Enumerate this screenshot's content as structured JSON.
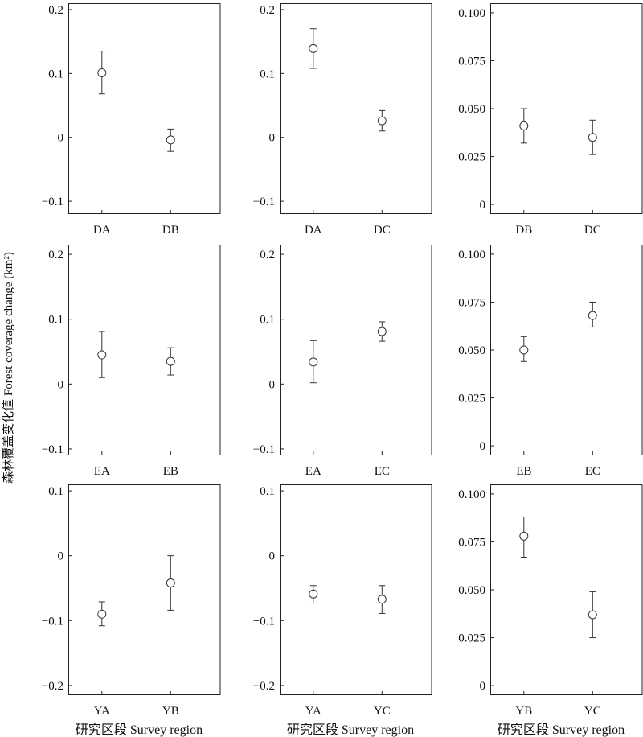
{
  "ylabel": "森林覆盖变化值 Forest coverage change (km²)",
  "xlabel": "研究区段 Survey region",
  "chart_data": [
    {
      "type": "scatter",
      "categories": [
        "DA",
        "DB"
      ],
      "series": [
        {
          "values": [
            0.101,
            -0.004
          ],
          "lower": [
            0.068,
            -0.022
          ],
          "upper": [
            0.135,
            0.013
          ]
        }
      ],
      "ylim": [
        -0.12,
        0.21
      ],
      "yticks": [
        -0.1,
        0,
        0.1,
        0.2
      ],
      "ytick_labels": [
        "−0.1",
        "0",
        "0.1",
        "0.2"
      ],
      "xlabel": "",
      "ylabel": "Forest coverage change (km²)",
      "grid": false
    },
    {
      "type": "scatter",
      "categories": [
        "DA",
        "DC"
      ],
      "series": [
        {
          "values": [
            0.139,
            0.026
          ],
          "lower": [
            0.108,
            0.01
          ],
          "upper": [
            0.17,
            0.042
          ]
        }
      ],
      "ylim": [
        -0.12,
        0.21
      ],
      "yticks": [
        -0.1,
        0,
        0.1,
        0.2
      ],
      "ytick_labels": [
        "−0.1",
        "0",
        "0.1",
        "0.2"
      ],
      "xlabel": "",
      "ylabel": "",
      "grid": false
    },
    {
      "type": "scatter",
      "categories": [
        "DB",
        "DC"
      ],
      "series": [
        {
          "values": [
            0.041,
            0.035
          ],
          "lower": [
            0.032,
            0.026
          ],
          "upper": [
            0.05,
            0.044
          ]
        }
      ],
      "ylim": [
        -0.005,
        0.105
      ],
      "yticks": [
        0,
        0.025,
        0.05,
        0.075,
        0.1
      ],
      "ytick_labels": [
        "0",
        "0.025",
        "0.050",
        "0.075",
        "0.100"
      ],
      "xlabel": "",
      "ylabel": "",
      "grid": false
    },
    {
      "type": "scatter",
      "categories": [
        "EA",
        "EB"
      ],
      "series": [
        {
          "values": [
            0.045,
            0.035
          ],
          "lower": [
            0.01,
            0.014
          ],
          "upper": [
            0.081,
            0.056
          ]
        }
      ],
      "ylim": [
        -0.11,
        0.215
      ],
      "yticks": [
        -0.1,
        0,
        0.1,
        0.2
      ],
      "ytick_labels": [
        "−0.1",
        "0",
        "0.1",
        "0.2"
      ],
      "xlabel": "",
      "ylabel": "",
      "grid": false
    },
    {
      "type": "scatter",
      "categories": [
        "EA",
        "EC"
      ],
      "series": [
        {
          "values": [
            0.034,
            0.081
          ],
          "lower": [
            0.002,
            0.066
          ],
          "upper": [
            0.067,
            0.096
          ]
        }
      ],
      "ylim": [
        -0.11,
        0.215
      ],
      "yticks": [
        -0.1,
        0,
        0.1,
        0.2
      ],
      "ytick_labels": [
        "−0.1",
        "0",
        "0.1",
        "0.2"
      ],
      "xlabel": "",
      "ylabel": "",
      "grid": false
    },
    {
      "type": "scatter",
      "categories": [
        "EB",
        "EC"
      ],
      "series": [
        {
          "values": [
            0.05,
            0.068
          ],
          "lower": [
            0.044,
            0.062
          ],
          "upper": [
            0.057,
            0.075
          ]
        }
      ],
      "ylim": [
        -0.005,
        0.105
      ],
      "yticks": [
        0,
        0.025,
        0.05,
        0.075,
        0.1
      ],
      "ytick_labels": [
        "0",
        "0.025",
        "0.050",
        "0.075",
        "0.100"
      ],
      "xlabel": "",
      "ylabel": "",
      "grid": false
    },
    {
      "type": "scatter",
      "categories": [
        "YA",
        "YB"
      ],
      "series": [
        {
          "values": [
            -0.09,
            -0.042
          ],
          "lower": [
            -0.108,
            -0.084
          ],
          "upper": [
            -0.071,
            0.0
          ]
        }
      ],
      "ylim": [
        -0.215,
        0.11
      ],
      "yticks": [
        -0.2,
        -0.1,
        0,
        0.1
      ],
      "ytick_labels": [
        "−0.2",
        "−0.1",
        "0",
        "0.1"
      ],
      "xlabel": "研究区段 Survey region",
      "ylabel": "",
      "grid": false
    },
    {
      "type": "scatter",
      "categories": [
        "YA",
        "YC"
      ],
      "series": [
        {
          "values": [
            -0.059,
            -0.067
          ],
          "lower": [
            -0.073,
            -0.089
          ],
          "upper": [
            -0.046,
            -0.046
          ]
        }
      ],
      "ylim": [
        -0.215,
        0.11
      ],
      "yticks": [
        -0.2,
        -0.1,
        0,
        0.1
      ],
      "ytick_labels": [
        "−0.2",
        "−0.1",
        "0",
        "0.1"
      ],
      "xlabel": "研究区段 Survey region",
      "ylabel": "",
      "grid": false
    },
    {
      "type": "scatter",
      "categories": [
        "YB",
        "YC"
      ],
      "series": [
        {
          "values": [
            0.078,
            0.037
          ],
          "lower": [
            0.067,
            0.025
          ],
          "upper": [
            0.088,
            0.049
          ]
        }
      ],
      "ylim": [
        -0.005,
        0.105
      ],
      "yticks": [
        0,
        0.025,
        0.05,
        0.075,
        0.1
      ],
      "ytick_labels": [
        "0",
        "0.025",
        "0.050",
        "0.075",
        "0.100"
      ],
      "xlabel": "研究区段 Survey region",
      "ylabel": "",
      "grid": false
    }
  ]
}
